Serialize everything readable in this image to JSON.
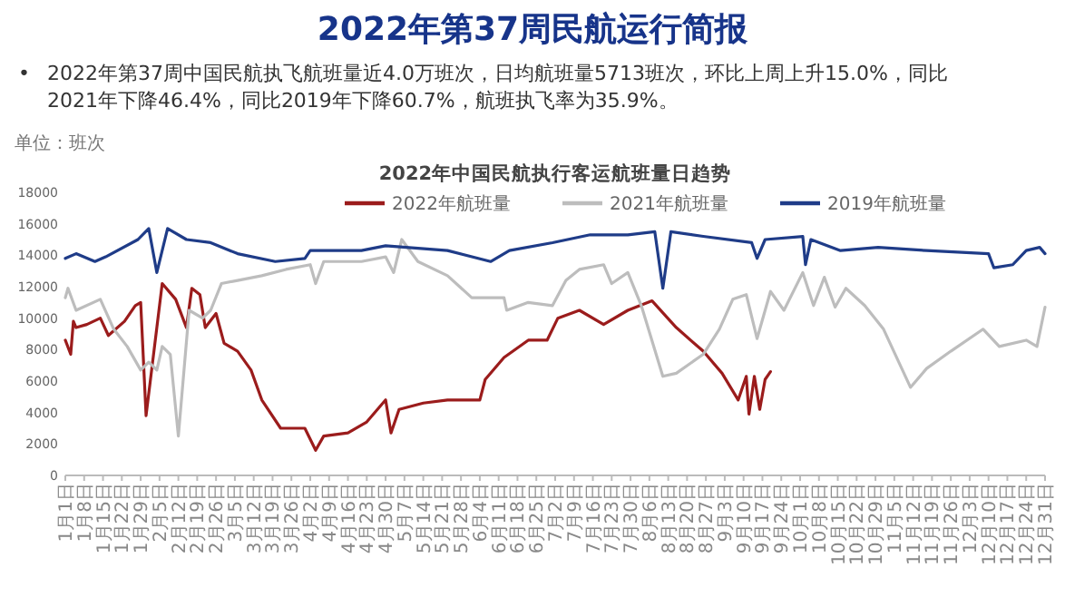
{
  "chart_data": {
    "type": "line",
    "title": "2022年中国民航执行客运航班量日趋势",
    "subtitle": "2022年第37周民航运行简报",
    "annotations": [
      "•",
      "2022年第37周中国民航执飞航班量近4.0万班次，日均航班量5713班次，环比上周上升15.0%，同比2021年下降46.4%，同比2019年下降60.7%，航班执飞率为35.9%。",
      "单位：班次"
    ],
    "legend": "top",
    "marker": "none",
    "line_style": "solid",
    "xlim": [
      "--01-01",
      "--12-31"
    ],
    "xticks": [
      {
        "value": "--01-01",
        "label": "1月1日"
      },
      {
        "value": "--01-08",
        "label": "1月8日"
      },
      {
        "value": "--01-15",
        "label": "1月15日"
      },
      {
        "value": "--01-22",
        "label": "1月22日"
      },
      {
        "value": "--01-29",
        "label": "1月29日"
      },
      {
        "value": "--02-05",
        "label": "2月5日"
      },
      {
        "value": "--02-12",
        "label": "2月12日"
      },
      {
        "value": "--02-19",
        "label": "2月19日"
      },
      {
        "value": "--02-26",
        "label": "2月26日"
      },
      {
        "value": "--03-05",
        "label": "3月5日"
      },
      {
        "value": "--03-12",
        "label": "3月12日"
      },
      {
        "value": "--03-19",
        "label": "3月19日"
      },
      {
        "value": "--03-26",
        "label": "3月26日"
      },
      {
        "value": "--04-02",
        "label": "4月2日"
      },
      {
        "value": "--04-09",
        "label": "4月9日"
      },
      {
        "value": "--04-16",
        "label": "4月16日"
      },
      {
        "value": "--04-23",
        "label": "4月23日"
      },
      {
        "value": "--04-30",
        "label": "4月30日"
      },
      {
        "value": "--05-07",
        "label": "5月7日"
      },
      {
        "value": "--05-14",
        "label": "5月14日"
      },
      {
        "value": "--05-21",
        "label": "5月21日"
      },
      {
        "value": "--05-28",
        "label": "5月28日"
      },
      {
        "value": "--06-04",
        "label": "6月4日"
      },
      {
        "value": "--06-11",
        "label": "6月11日"
      },
      {
        "value": "--06-18",
        "label": "6月18日"
      },
      {
        "value": "--06-25",
        "label": "6月25日"
      },
      {
        "value": "--07-02",
        "label": "7月2日"
      },
      {
        "value": "--07-09",
        "label": "7月9日"
      },
      {
        "value": "--07-16",
        "label": "7月16日"
      },
      {
        "value": "--07-23",
        "label": "7月23日"
      },
      {
        "value": "--07-30",
        "label": "7月30日"
      },
      {
        "value": "--08-06",
        "label": "8月6日"
      },
      {
        "value": "--08-13",
        "label": "8月13日"
      },
      {
        "value": "--08-20",
        "label": "8月20日"
      },
      {
        "value": "--08-27",
        "label": "8月27日"
      },
      {
        "value": "--09-03",
        "label": "9月3日"
      },
      {
        "value": "--09-10",
        "label": "9月10日"
      },
      {
        "value": "--09-17",
        "label": "9月17日"
      },
      {
        "value": "--09-24",
        "label": "9月24日"
      },
      {
        "value": "--10-01",
        "label": "10月1日"
      },
      {
        "value": "--10-08",
        "label": "10月8日"
      },
      {
        "value": "--10-15",
        "label": "10月15日"
      },
      {
        "value": "--10-22",
        "label": "10月22日"
      },
      {
        "value": "--10-29",
        "label": "10月29日"
      },
      {
        "value": "--11-05",
        "label": "11月5日"
      },
      {
        "value": "--11-12",
        "label": "11月12日"
      },
      {
        "value": "--11-19",
        "label": "11月19日"
      },
      {
        "value": "--11-26",
        "label": "11月26日"
      },
      {
        "value": "--12-03",
        "label": "12月3日"
      },
      {
        "value": "--12-10",
        "label": "12月10日"
      },
      {
        "value": "--12-17",
        "label": "12月17日"
      },
      {
        "value": "--12-24",
        "label": "12月24日"
      },
      {
        "value": "--12-31",
        "label": "12月31日"
      }
    ],
    "ylim": [
      0,
      18000
    ],
    "yticks": [
      0,
      2000,
      4000,
      6000,
      8000,
      10000,
      12000,
      14000,
      16000,
      18000
    ],
    "series": [
      {
        "name": "2022年航班量",
        "color": "#9b1c1c",
        "x": [
          "--01-01",
          "--01-03",
          "--01-04",
          "--01-05",
          "--01-09",
          "--01-14",
          "--01-17",
          "--01-23",
          "--01-27",
          "--01-29",
          "--01-31",
          "--02-06",
          "--02-11",
          "--02-15",
          "--02-17",
          "--02-20",
          "--02-22",
          "--02-26",
          "--03-01",
          "--03-06",
          "--03-11",
          "--03-15",
          "--03-22",
          "--03-31",
          "--04-04",
          "--04-07",
          "--04-16",
          "--04-23",
          "--04-30",
          "--05-02",
          "--05-05",
          "--05-14",
          "--05-23",
          "--06-04",
          "--06-06",
          "--06-13",
          "--06-22",
          "--06-29",
          "--07-03",
          "--07-11",
          "--07-20",
          "--07-29",
          "--08-07",
          "--08-16",
          "--08-26",
          "--09-02",
          "--09-08",
          "--09-11",
          "--09-12",
          "--09-14",
          "--09-16",
          "--09-18",
          "--09-20"
        ],
        "values": [
          8600,
          7700,
          9800,
          9400,
          9600,
          10000,
          8900,
          9800,
          10800,
          11000,
          3800,
          12200,
          11200,
          9400,
          11900,
          11500,
          9400,
          10300,
          8400,
          7900,
          6700,
          4800,
          3000,
          3000,
          1600,
          2500,
          2700,
          3400,
          4800,
          2700,
          4200,
          4600,
          4800,
          4800,
          6100,
          7500,
          8600,
          8600,
          10000,
          10500,
          9600,
          10500,
          11100,
          9400,
          7900,
          6500,
          4800,
          6300,
          3900,
          6300,
          4200,
          6100,
          6600
        ]
      },
      {
        "name": "2021年航班量",
        "color": "#bdbdbd",
        "x": [
          "--01-01",
          "--01-02",
          "--01-05",
          "--01-14",
          "--01-19",
          "--01-24",
          "--01-29",
          "--02-01",
          "--02-04",
          "--02-06",
          "--02-09",
          "--02-12",
          "--02-16",
          "--02-21",
          "--02-24",
          "--02-28",
          "--03-06",
          "--03-15",
          "--03-24",
          "--04-02",
          "--04-04",
          "--04-07",
          "--04-21",
          "--04-30",
          "--05-03",
          "--05-06",
          "--05-12",
          "--05-23",
          "--06-01",
          "--06-13",
          "--06-14",
          "--06-22",
          "--07-01",
          "--07-06",
          "--07-11",
          "--07-20",
          "--07-23",
          "--07-29",
          "--08-03",
          "--08-11",
          "--08-16",
          "--08-26",
          "--09-01",
          "--09-06",
          "--09-11",
          "--09-15",
          "--09-20",
          "--09-25",
          "--10-02",
          "--10-06",
          "--10-10",
          "--10-14",
          "--10-18",
          "--10-25",
          "--11-01",
          "--11-11",
          "--11-17",
          "--11-26",
          "--12-08",
          "--12-14",
          "--12-24",
          "--12-28",
          "--12-31"
        ],
        "values": [
          11300,
          11900,
          10500,
          11200,
          9300,
          8200,
          6700,
          7200,
          6700,
          8200,
          7700,
          2500,
          10500,
          10000,
          10500,
          12200,
          12400,
          12700,
          13100,
          13400,
          12200,
          13600,
          13600,
          13900,
          12900,
          15000,
          13600,
          12700,
          11300,
          11300,
          10500,
          11000,
          10800,
          12400,
          13100,
          13400,
          12200,
          12900,
          10800,
          6300,
          6500,
          7700,
          9300,
          11200,
          11500,
          8700,
          11700,
          10500,
          12900,
          10800,
          12600,
          10700,
          11900,
          10800,
          9300,
          5600,
          6800,
          7900,
          9300,
          8200,
          8600,
          8200,
          10700
        ]
      },
      {
        "name": "2019年航班量",
        "color": "#1f3c88",
        "x": [
          "--01-01",
          "--01-05",
          "--01-12",
          "--01-16",
          "--01-28",
          "--02-01",
          "--02-04",
          "--02-08",
          "--02-15",
          "--02-24",
          "--03-06",
          "--03-20",
          "--03-31",
          "--04-02",
          "--04-21",
          "--04-30",
          "--05-23",
          "--06-08",
          "--06-15",
          "--07-01",
          "--07-15",
          "--07-29",
          "--08-08",
          "--08-11",
          "--08-14",
          "--08-26",
          "--09-13",
          "--09-15",
          "--09-18",
          "--10-02",
          "--10-03",
          "--10-05",
          "--10-16",
          "--10-30",
          "--11-17",
          "--12-10",
          "--12-12",
          "--12-19",
          "--12-24",
          "--12-29",
          "--12-31"
        ],
        "values": [
          13800,
          14100,
          13600,
          13900,
          15000,
          15700,
          12900,
          15700,
          15000,
          14800,
          14100,
          13600,
          13800,
          14300,
          14300,
          14600,
          14300,
          13600,
          14300,
          14800,
          15300,
          15300,
          15500,
          11900,
          15500,
          15200,
          14800,
          13800,
          15000,
          15200,
          13400,
          15000,
          14300,
          14500,
          14300,
          14100,
          13200,
          13400,
          14300,
          14500,
          14100
        ]
      }
    ]
  }
}
